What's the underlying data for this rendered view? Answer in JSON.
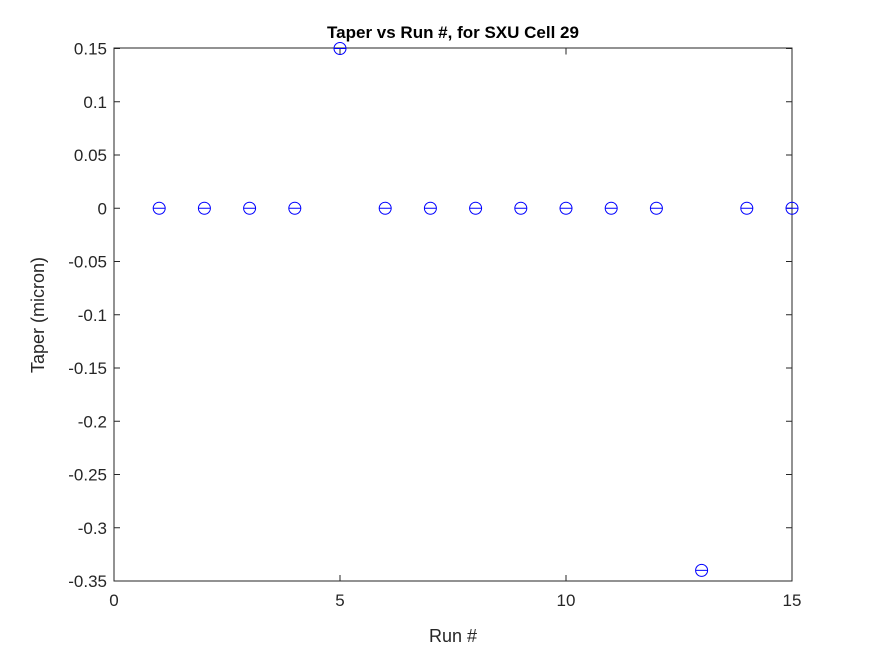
{
  "chart_data": {
    "type": "scatter",
    "title": "Taper vs Run #, for SXU Cell 29",
    "xlabel": "Run #",
    "ylabel": "Taper (micron)",
    "xlim": [
      0,
      15
    ],
    "ylim": [
      -0.35,
      0.15
    ],
    "xticks": [
      0,
      5,
      10,
      15
    ],
    "xtick_labels": [
      "0",
      "5",
      "10",
      "15"
    ],
    "yticks": [
      0.15,
      0.1,
      0.05,
      0,
      -0.05,
      -0.1,
      -0.15,
      -0.2,
      -0.25,
      -0.3,
      -0.35
    ],
    "ytick_labels": [
      "0.15",
      "0.1",
      "0.05",
      "0",
      "-0.05",
      "-0.1",
      "-0.15",
      "-0.2",
      "-0.25",
      "-0.3",
      "-0.35"
    ],
    "grid": false,
    "marker": "circle",
    "marker_color": "#0000ff",
    "x": [
      1,
      2,
      3,
      4,
      5,
      6,
      7,
      8,
      9,
      10,
      11,
      12,
      13,
      14,
      15
    ],
    "y": [
      0,
      0,
      0,
      0,
      0.15,
      0,
      0,
      0,
      0,
      0,
      0,
      0,
      -0.34,
      0,
      0
    ]
  }
}
